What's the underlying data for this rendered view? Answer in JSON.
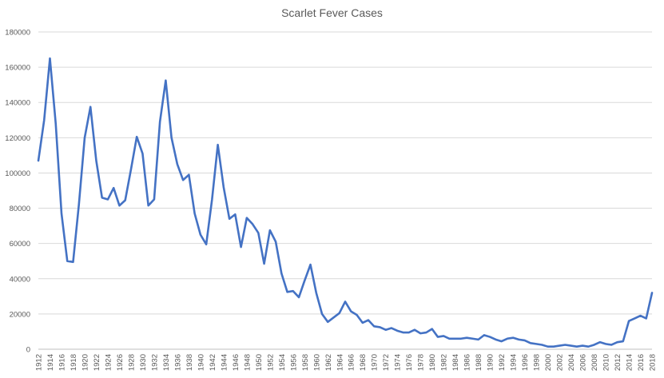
{
  "chart_data": {
    "type": "line",
    "title": "Scarlet Fever Cases",
    "xlabel": "",
    "ylabel": "",
    "ylim": [
      0,
      180000
    ],
    "yticks": [
      0,
      20000,
      40000,
      60000,
      80000,
      100000,
      120000,
      140000,
      160000,
      180000
    ],
    "xlim": [
      1912,
      2018
    ],
    "xticks": [
      1912,
      1914,
      1916,
      1918,
      1920,
      1922,
      1924,
      1926,
      1928,
      1930,
      1932,
      1934,
      1936,
      1938,
      1940,
      1942,
      1944,
      1946,
      1948,
      1950,
      1952,
      1954,
      1956,
      1958,
      1960,
      1962,
      1964,
      1966,
      1968,
      1970,
      1972,
      1974,
      1976,
      1978,
      1980,
      1982,
      1984,
      1986,
      1988,
      1990,
      1992,
      1994,
      1996,
      1998,
      2000,
      2002,
      2004,
      2006,
      2008,
      2010,
      2012,
      2014,
      2016,
      2018
    ],
    "grid": true,
    "legend": "none",
    "series": [
      {
        "color": "#4472c4",
        "x": [
          1912,
          1913,
          1914,
          1915,
          1916,
          1917,
          1918,
          1919,
          1920,
          1921,
          1922,
          1923,
          1924,
          1925,
          1926,
          1927,
          1928,
          1929,
          1930,
          1931,
          1932,
          1933,
          1934,
          1935,
          1936,
          1937,
          1938,
          1939,
          1940,
          1941,
          1942,
          1943,
          1944,
          1945,
          1946,
          1947,
          1948,
          1949,
          1950,
          1951,
          1952,
          1953,
          1954,
          1955,
          1956,
          1957,
          1958,
          1959,
          1960,
          1961,
          1962,
          1963,
          1964,
          1965,
          1966,
          1967,
          1968,
          1969,
          1970,
          1971,
          1972,
          1973,
          1974,
          1975,
          1976,
          1977,
          1978,
          1979,
          1980,
          1981,
          1982,
          1983,
          1984,
          1985,
          1986,
          1987,
          1988,
          1989,
          1990,
          1991,
          1992,
          1993,
          1994,
          1995,
          1996,
          1997,
          1998,
          1999,
          2000,
          2001,
          2002,
          2003,
          2004,
          2005,
          2006,
          2007,
          2008,
          2009,
          2010,
          2011,
          2012,
          2013,
          2014,
          2015,
          2016,
          2017,
          2018
        ],
        "values": [
          107000,
          130000,
          165000,
          128000,
          77000,
          50000,
          49500,
          82000,
          120000,
          137500,
          107000,
          86000,
          85000,
          91500,
          81500,
          84500,
          102000,
          120500,
          111000,
          81500,
          85000,
          129000,
          152500,
          120000,
          105000,
          96000,
          99000,
          77000,
          65000,
          59500,
          85000,
          116000,
          92000,
          74000,
          76500,
          58000,
          74500,
          71000,
          66000,
          48500,
          67500,
          61000,
          43000,
          32500,
          33000,
          29500,
          39000,
          48000,
          32000,
          20000,
          15500,
          18000,
          20500,
          27000,
          21500,
          19500,
          15000,
          16500,
          13000,
          12500,
          11000,
          12000,
          10500,
          9500,
          9500,
          11000,
          9000,
          9500,
          11500,
          7000,
          7500,
          6000,
          6000,
          6000,
          6500,
          6000,
          5500,
          8000,
          7000,
          5500,
          4500,
          6000,
          6500,
          5500,
          5000,
          3500,
          3000,
          2500,
          1500,
          1500,
          2000,
          2500,
          2000,
          1500,
          2000,
          1500,
          2500,
          4000,
          3000,
          2500,
          4000,
          4500,
          16000,
          17500,
          19000,
          17500,
          32000
        ]
      }
    ]
  }
}
